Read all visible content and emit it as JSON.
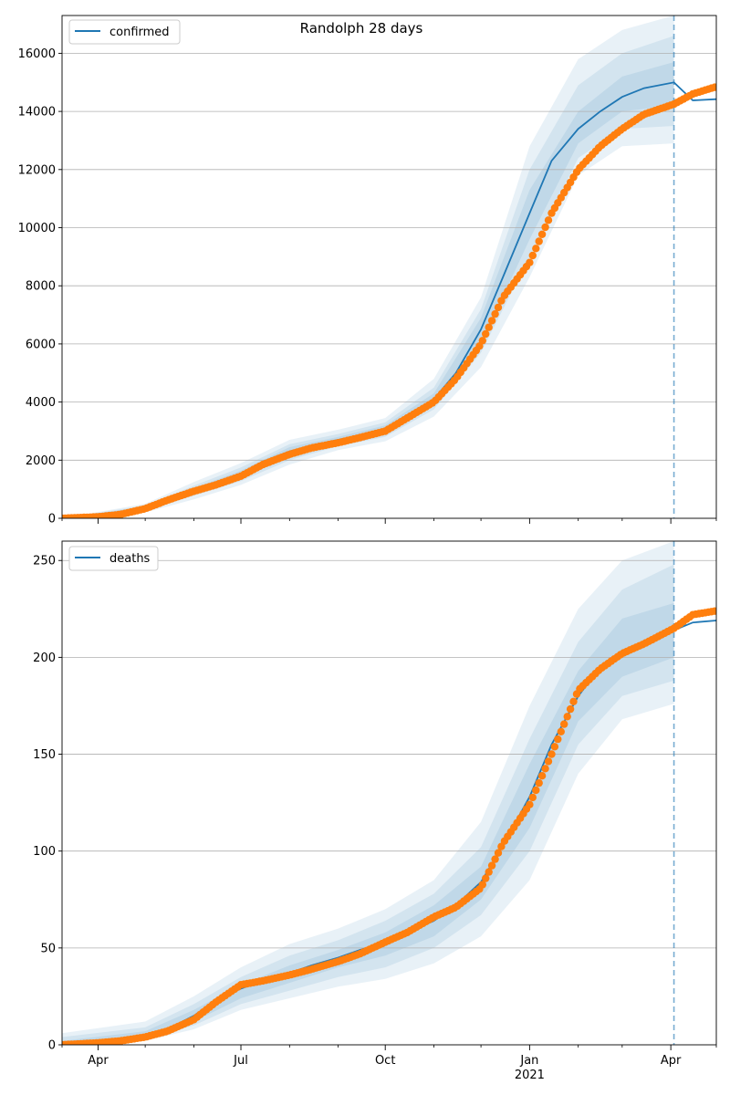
{
  "chart_data": [
    {
      "type": "line",
      "title": "Randolph 28 days",
      "legend": {
        "label": "confirmed",
        "placement": "top-left"
      },
      "ylim": [
        0,
        17300
      ],
      "yticks": [
        0,
        2000,
        4000,
        6000,
        8000,
        10000,
        12000,
        14000,
        16000
      ],
      "ytick_labels": [
        "0",
        "2000",
        "4000",
        "6000",
        "8000",
        "10000",
        "12000",
        "14000",
        "16000"
      ],
      "grid": "horizontal",
      "xlim": [
        "2020-03-09",
        "2021-04-30"
      ],
      "forecast_start": "2021-04-03",
      "colors": {
        "model": "#1f77b4",
        "observed": "#ff7f0e",
        "band": "#1f77b4",
        "grid": "#b0b0b0"
      },
      "series": [
        {
          "name": "confirmed",
          "kind": "model-line",
          "x": [
            "2020-03-09",
            "2020-04-01",
            "2020-04-15",
            "2020-05-01",
            "2020-05-15",
            "2020-06-01",
            "2020-06-15",
            "2020-07-01",
            "2020-07-15",
            "2020-08-01",
            "2020-08-15",
            "2020-09-01",
            "2020-09-15",
            "2020-10-01",
            "2020-10-15",
            "2020-11-01",
            "2020-11-15",
            "2020-12-01",
            "2020-12-15",
            "2021-01-01",
            "2021-01-15",
            "2021-02-01",
            "2021-02-15",
            "2021-03-01",
            "2021-03-15",
            "2021-04-03",
            "2021-04-15",
            "2021-04-30"
          ],
          "y": [
            0,
            60,
            150,
            350,
            650,
            950,
            1200,
            1500,
            1950,
            2300,
            2500,
            2700,
            2850,
            3050,
            3500,
            4100,
            5000,
            6500,
            8300,
            10500,
            12300,
            13400,
            14000,
            14500,
            14800,
            15000,
            14380,
            14420
          ]
        },
        {
          "name": "confirmed observed",
          "kind": "observed-points",
          "x": [
            "2020-03-09",
            "2020-04-01",
            "2020-04-15",
            "2020-05-01",
            "2020-05-15",
            "2020-06-01",
            "2020-06-15",
            "2020-07-01",
            "2020-07-15",
            "2020-08-01",
            "2020-08-15",
            "2020-09-01",
            "2020-09-15",
            "2020-10-01",
            "2020-10-15",
            "2020-11-01",
            "2020-11-15",
            "2020-12-01",
            "2020-12-15",
            "2021-01-01",
            "2021-01-15",
            "2021-02-01",
            "2021-02-15",
            "2021-03-01",
            "2021-03-15",
            "2021-04-03",
            "2021-04-15",
            "2021-04-30"
          ],
          "y": [
            0,
            50,
            130,
            330,
            620,
            930,
            1150,
            1450,
            1850,
            2200,
            2420,
            2600,
            2780,
            3000,
            3450,
            4000,
            4800,
            6000,
            7600,
            8800,
            10500,
            12000,
            12800,
            13400,
            13900,
            14250,
            14600,
            14850
          ]
        }
      ],
      "bands": [
        {
          "x": [
            "2020-03-09",
            "2020-05-01",
            "2020-06-01",
            "2020-07-01",
            "2020-08-01",
            "2020-09-01",
            "2020-10-01",
            "2020-11-01",
            "2020-12-01",
            "2021-01-01",
            "2021-02-01",
            "2021-03-01",
            "2021-04-03"
          ],
          "low": [
            0,
            200,
            650,
            1150,
            1850,
            2350,
            2650,
            3500,
            5200,
            8300,
            11800,
            12800,
            12900
          ],
          "high": [
            0,
            500,
            1250,
            1900,
            2700,
            3050,
            3450,
            4800,
            7600,
            12800,
            15800,
            16800,
            17300
          ]
        },
        {
          "x": [
            "2020-03-09",
            "2020-05-01",
            "2020-06-01",
            "2020-07-01",
            "2020-08-01",
            "2020-09-01",
            "2020-10-01",
            "2020-11-01",
            "2020-12-01",
            "2021-01-01",
            "2021-02-01",
            "2021-03-01",
            "2021-04-03"
          ],
          "low": [
            0,
            260,
            780,
            1280,
            2000,
            2480,
            2800,
            3750,
            5700,
            9000,
            12400,
            13400,
            13500
          ],
          "high": [
            0,
            440,
            1120,
            1750,
            2550,
            2900,
            3300,
            4500,
            7200,
            12000,
            14900,
            16000,
            16600
          ]
        },
        {
          "x": [
            "2020-03-09",
            "2020-05-01",
            "2020-06-01",
            "2020-07-01",
            "2020-08-01",
            "2020-09-01",
            "2020-10-01",
            "2020-11-01",
            "2020-12-01",
            "2021-01-01",
            "2021-02-01",
            "2021-03-01",
            "2021-04-03"
          ],
          "low": [
            0,
            300,
            860,
            1380,
            2120,
            2580,
            2900,
            3900,
            6000,
            9600,
            12900,
            14000,
            14200
          ],
          "high": [
            0,
            400,
            1040,
            1640,
            2450,
            2800,
            3200,
            4300,
            6900,
            11300,
            14000,
            15200,
            15700
          ]
        }
      ]
    },
    {
      "type": "line",
      "legend": {
        "label": "deaths",
        "placement": "top-left"
      },
      "ylim": [
        0,
        260
      ],
      "yticks": [
        0,
        50,
        100,
        150,
        200,
        250
      ],
      "ytick_labels": [
        "0",
        "50",
        "100",
        "150",
        "200",
        "250"
      ],
      "grid": "horizontal",
      "xlim": [
        "2020-03-09",
        "2021-04-30"
      ],
      "xticks": [
        "2020-04-01",
        "2020-07-01",
        "2020-10-01",
        "2021-01-01",
        "2021-04-01"
      ],
      "xtick_labels": [
        "Apr",
        "Jul",
        "Oct",
        "Jan",
        "Apr"
      ],
      "xtick_year_label": "2021",
      "forecast_start": "2021-04-03",
      "colors": {
        "model": "#1f77b4",
        "observed": "#ff7f0e",
        "band": "#1f77b4",
        "grid": "#b0b0b0"
      },
      "series": [
        {
          "name": "deaths",
          "kind": "model-line",
          "x": [
            "2020-03-09",
            "2020-04-01",
            "2020-04-15",
            "2020-05-01",
            "2020-05-15",
            "2020-06-01",
            "2020-06-15",
            "2020-07-01",
            "2020-07-15",
            "2020-08-01",
            "2020-08-15",
            "2020-09-01",
            "2020-09-15",
            "2020-10-01",
            "2020-10-15",
            "2020-11-01",
            "2020-11-15",
            "2020-12-01",
            "2020-12-15",
            "2021-01-01",
            "2021-01-15",
            "2021-02-01",
            "2021-02-15",
            "2021-03-01",
            "2021-03-15",
            "2021-04-03",
            "2021-04-15",
            "2021-04-30"
          ],
          "y": [
            0,
            1,
            2,
            5,
            8,
            15,
            23,
            29,
            33,
            37,
            41,
            45,
            49,
            53,
            58,
            64,
            72,
            84,
            103,
            128,
            155,
            180,
            195,
            203,
            208,
            214,
            218,
            219
          ]
        },
        {
          "name": "deaths observed",
          "kind": "observed-points",
          "x": [
            "2020-03-09",
            "2020-04-01",
            "2020-04-15",
            "2020-05-01",
            "2020-05-15",
            "2020-06-01",
            "2020-06-15",
            "2020-07-01",
            "2020-07-15",
            "2020-08-01",
            "2020-08-15",
            "2020-09-01",
            "2020-09-15",
            "2020-10-01",
            "2020-10-15",
            "2020-11-01",
            "2020-11-15",
            "2020-12-01",
            "2020-12-15",
            "2021-01-01",
            "2021-01-15",
            "2021-02-01",
            "2021-02-15",
            "2021-03-01",
            "2021-03-15",
            "2021-04-03",
            "2021-04-15",
            "2021-04-30"
          ],
          "y": [
            0,
            1,
            2,
            4,
            7,
            13,
            22,
            31,
            33,
            36,
            39,
            43,
            47,
            53,
            58,
            66,
            71,
            81,
            104,
            124,
            150,
            183,
            194,
            202,
            207,
            215,
            222,
            224
          ]
        }
      ],
      "bands": [
        {
          "x": [
            "2020-03-09",
            "2020-05-01",
            "2020-06-01",
            "2020-07-01",
            "2020-08-01",
            "2020-09-01",
            "2020-10-01",
            "2020-11-01",
            "2020-12-01",
            "2021-01-01",
            "2021-02-01",
            "2021-03-01",
            "2021-04-03"
          ],
          "low": [
            0,
            2,
            8,
            18,
            24,
            30,
            34,
            42,
            56,
            85,
            140,
            168,
            176
          ],
          "high": [
            6,
            12,
            25,
            40,
            52,
            60,
            70,
            85,
            115,
            175,
            225,
            250,
            260
          ]
        },
        {
          "x": [
            "2020-03-09",
            "2020-05-01",
            "2020-06-01",
            "2020-07-01",
            "2020-08-01",
            "2020-09-01",
            "2020-10-01",
            "2020-11-01",
            "2020-12-01",
            "2021-01-01",
            "2021-02-01",
            "2021-03-01",
            "2021-04-03"
          ],
          "low": [
            0,
            3,
            10,
            21,
            28,
            35,
            40,
            50,
            67,
            100,
            155,
            180,
            188
          ],
          "high": [
            4,
            9,
            21,
            35,
            46,
            54,
            64,
            78,
            102,
            158,
            208,
            235,
            248
          ]
        },
        {
          "x": [
            "2020-03-09",
            "2020-05-01",
            "2020-06-01",
            "2020-07-01",
            "2020-08-01",
            "2020-09-01",
            "2020-10-01",
            "2020-11-01",
            "2020-12-01",
            "2021-01-01",
            "2021-02-01",
            "2021-03-01",
            "2021-04-03"
          ],
          "low": [
            0,
            4,
            12,
            24,
            32,
            40,
            46,
            56,
            75,
            112,
            167,
            190,
            200
          ],
          "high": [
            2,
            7,
            18,
            31,
            41,
            49,
            58,
            72,
            92,
            145,
            193,
            220,
            228
          ]
        }
      ]
    }
  ]
}
